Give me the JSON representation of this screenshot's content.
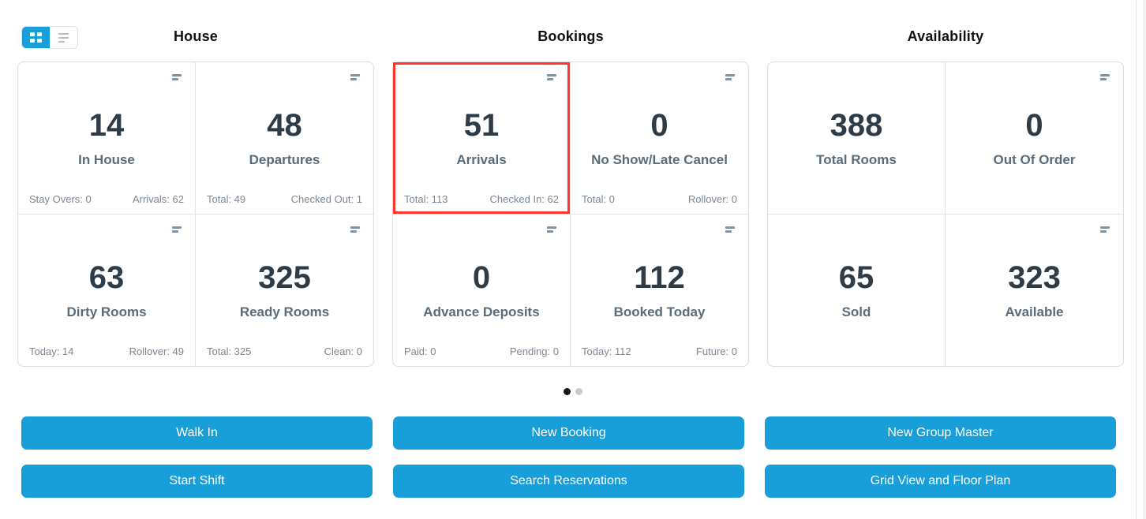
{
  "colors": {
    "accent": "#189ed9",
    "highlight": "#ff382b",
    "number": "#2e3c48",
    "label": "#5a6c7a",
    "stat": "#7b8793",
    "title": "#111111"
  },
  "view_toggle": {
    "grid_icon": "grid-view-icon",
    "list_icon": "list-view-icon",
    "active": "grid"
  },
  "sections": [
    {
      "title": "House",
      "cards": [
        {
          "value": "14",
          "label": "In House",
          "stat_left": "Stay Overs: 0",
          "stat_right": "Arrivals: 62"
        },
        {
          "value": "48",
          "label": "Departures",
          "stat_left": "Total: 49",
          "stat_right": "Checked Out: 1"
        },
        {
          "value": "63",
          "label": "Dirty Rooms",
          "stat_left": "Today: 14",
          "stat_right": "Rollover: 49"
        },
        {
          "value": "325",
          "label": "Ready Rooms",
          "stat_left": "Total: 325",
          "stat_right": "Clean: 0"
        }
      ],
      "buttons": [
        "Walk In",
        "Start Shift"
      ]
    },
    {
      "title": "Bookings",
      "cards": [
        {
          "value": "51",
          "label": "Arrivals",
          "stat_left": "Total: 113",
          "stat_right": "Checked In: 62",
          "highlighted": true
        },
        {
          "value": "0",
          "label": "No Show/Late Cancel",
          "stat_left": "Total: 0",
          "stat_right": "Rollover: 0"
        },
        {
          "value": "0",
          "label": "Advance Deposits",
          "stat_left": "Paid: 0",
          "stat_right": "Pending: 0"
        },
        {
          "value": "112",
          "label": "Booked Today",
          "stat_left": "Today: 112",
          "stat_right": "Future: 0"
        }
      ],
      "buttons": [
        "New Booking",
        "Search Reservations"
      ]
    },
    {
      "title": "Availability",
      "cards": [
        {
          "value": "388",
          "label": "Total Rooms"
        },
        {
          "value": "0",
          "label": "Out Of Order"
        },
        {
          "value": "65",
          "label": "Sold"
        },
        {
          "value": "323",
          "label": "Available"
        }
      ],
      "buttons": [
        "New Group Master",
        "Grid View and Floor Plan"
      ]
    }
  ],
  "pagination": {
    "pages": 2,
    "active_page": 1
  }
}
